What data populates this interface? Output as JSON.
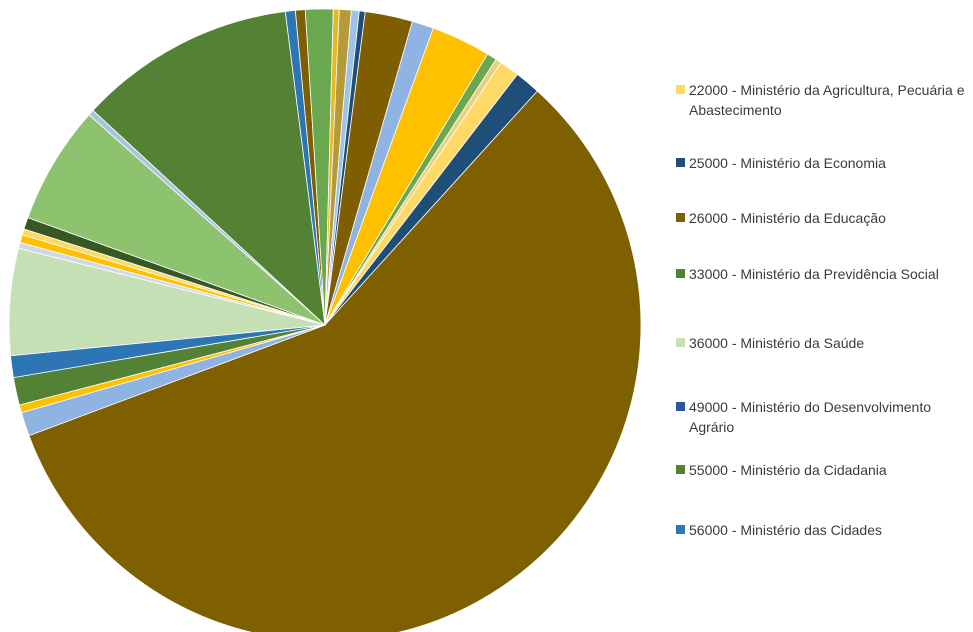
{
  "chart_data": {
    "type": "pie",
    "slices": [
      {
        "name": "",
        "value": 0.5,
        "color": "#7e5e00"
      },
      {
        "name": "",
        "value": 1.4,
        "color": "#6aa84f"
      },
      {
        "name": "",
        "value": 0.3,
        "color": "#e8b820"
      },
      {
        "name": "",
        "value": 0.6,
        "color": "#b59a3a"
      },
      {
        "name": "",
        "value": 0.4,
        "color": "#9dc3e6"
      },
      {
        "name": "",
        "value": 0.3,
        "color": "#1f4e79"
      },
      {
        "name": "",
        "value": 2.4,
        "color": "#7e5e00"
      },
      {
        "name": "",
        "value": 1.1,
        "color": "#8fb4e3"
      },
      {
        "name": "",
        "value": 3.0,
        "color": "#ffc000"
      },
      {
        "name": "",
        "value": 0.5,
        "color": "#6aa84f"
      },
      {
        "name": "",
        "value": 0.3,
        "color": "#e8d080"
      },
      {
        "name": "",
        "value": 1.0,
        "color": "#ffd966"
      },
      {
        "name": "",
        "value": 1.3,
        "color": "#1f4e79"
      },
      {
        "name": "",
        "value": 57.0,
        "color": "#7f6000"
      },
      {
        "name": "",
        "value": 1.2,
        "color": "#8fb4e3"
      },
      {
        "name": "",
        "value": 0.4,
        "color": "#ffc000"
      },
      {
        "name": "",
        "value": 1.4,
        "color": "#548235"
      },
      {
        "name": "",
        "value": 1.1,
        "color": "#2e75b6"
      },
      {
        "name": "",
        "value": 5.4,
        "color": "#c5e0b4"
      },
      {
        "name": "",
        "value": 0.3,
        "color": "#d0d8e8"
      },
      {
        "name": "",
        "value": 0.4,
        "color": "#ffc000"
      },
      {
        "name": "",
        "value": 0.3,
        "color": "#ffd966"
      },
      {
        "name": "",
        "value": 0.6,
        "color": "#385723"
      },
      {
        "name": "",
        "value": 6.0,
        "color": "#8dc26f"
      },
      {
        "name": "",
        "value": 0.3,
        "color": "#a9c4e0"
      },
      {
        "name": "",
        "value": 11.0,
        "color": "#548235"
      },
      {
        "name": "",
        "value": 0.5,
        "color": "#2e75b6"
      }
    ],
    "legend_position": "right",
    "legend": [
      {
        "label": "22000 - Ministério da Agricultura, Pecuária e Abastecimento",
        "color": "#ffd966"
      },
      {
        "label": "25000 - Ministério da Economia",
        "color": "#1f4e79"
      },
      {
        "label": "26000 - Ministério da Educação",
        "color": "#7f6000"
      },
      {
        "label": "33000 - Ministério da Previdência Social",
        "color": "#548235"
      },
      {
        "label": "36000 - Ministério da Saúde",
        "color": "#c5e0b4"
      },
      {
        "label": "49000 - Ministério do Desenvolvimento Agrário",
        "color": "#2f5597"
      },
      {
        "label": "55000 - Ministério da Cidadania",
        "color": "#548235"
      },
      {
        "label": "56000 - Ministério das Cidades",
        "color": "#2e75b6"
      }
    ]
  }
}
